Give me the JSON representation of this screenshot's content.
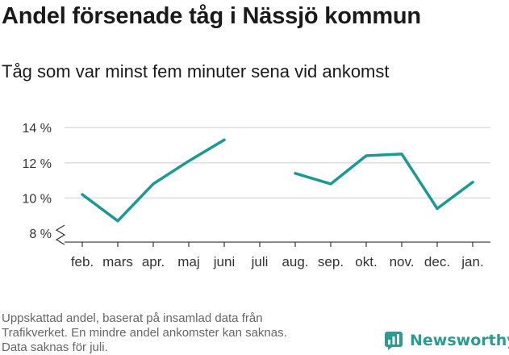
{
  "header": {
    "title": "Andel försenade tåg i Nässjö kommun",
    "subtitle": "Tåg som var minst fem minuter sena vid ankomst"
  },
  "chart_data": {
    "type": "line",
    "title": "Andel försenade tåg i Nässjö kommun",
    "subtitle": "Tåg som var minst fem minuter sena vid ankomst",
    "xlabel": "",
    "ylabel": "",
    "categories": [
      "feb.",
      "mars",
      "apr.",
      "maj",
      "juni",
      "juli",
      "aug.",
      "sep.",
      "okt.",
      "nov.",
      "dec.",
      "jan."
    ],
    "series": [
      {
        "values": [
          10.2,
          8.7,
          10.8,
          12.1,
          13.3,
          null,
          11.4,
          10.8,
          12.4,
          12.5,
          9.4,
          10.9
        ]
      }
    ],
    "yticks": [
      8,
      10,
      12,
      14
    ],
    "ytick_labels": [
      "8 %",
      "10 %",
      "12 %",
      "14 %"
    ],
    "ylim": [
      7.5,
      14.6
    ],
    "axis_break": true,
    "grid": true,
    "colors": {
      "line": "#1a9a90",
      "grid": "#dddddd",
      "axis": "#333333"
    }
  },
  "footnote": {
    "lines": [
      "Uppskattad andel, baserat på insamlad data från",
      "Trafikverket. En mindre andel ankomster kan saknas.",
      "Data saknas för juli."
    ]
  },
  "brand": {
    "name": "Newsworthy",
    "logo_icon": "newsworthy-logo-icon",
    "color": "#2b9a91"
  }
}
